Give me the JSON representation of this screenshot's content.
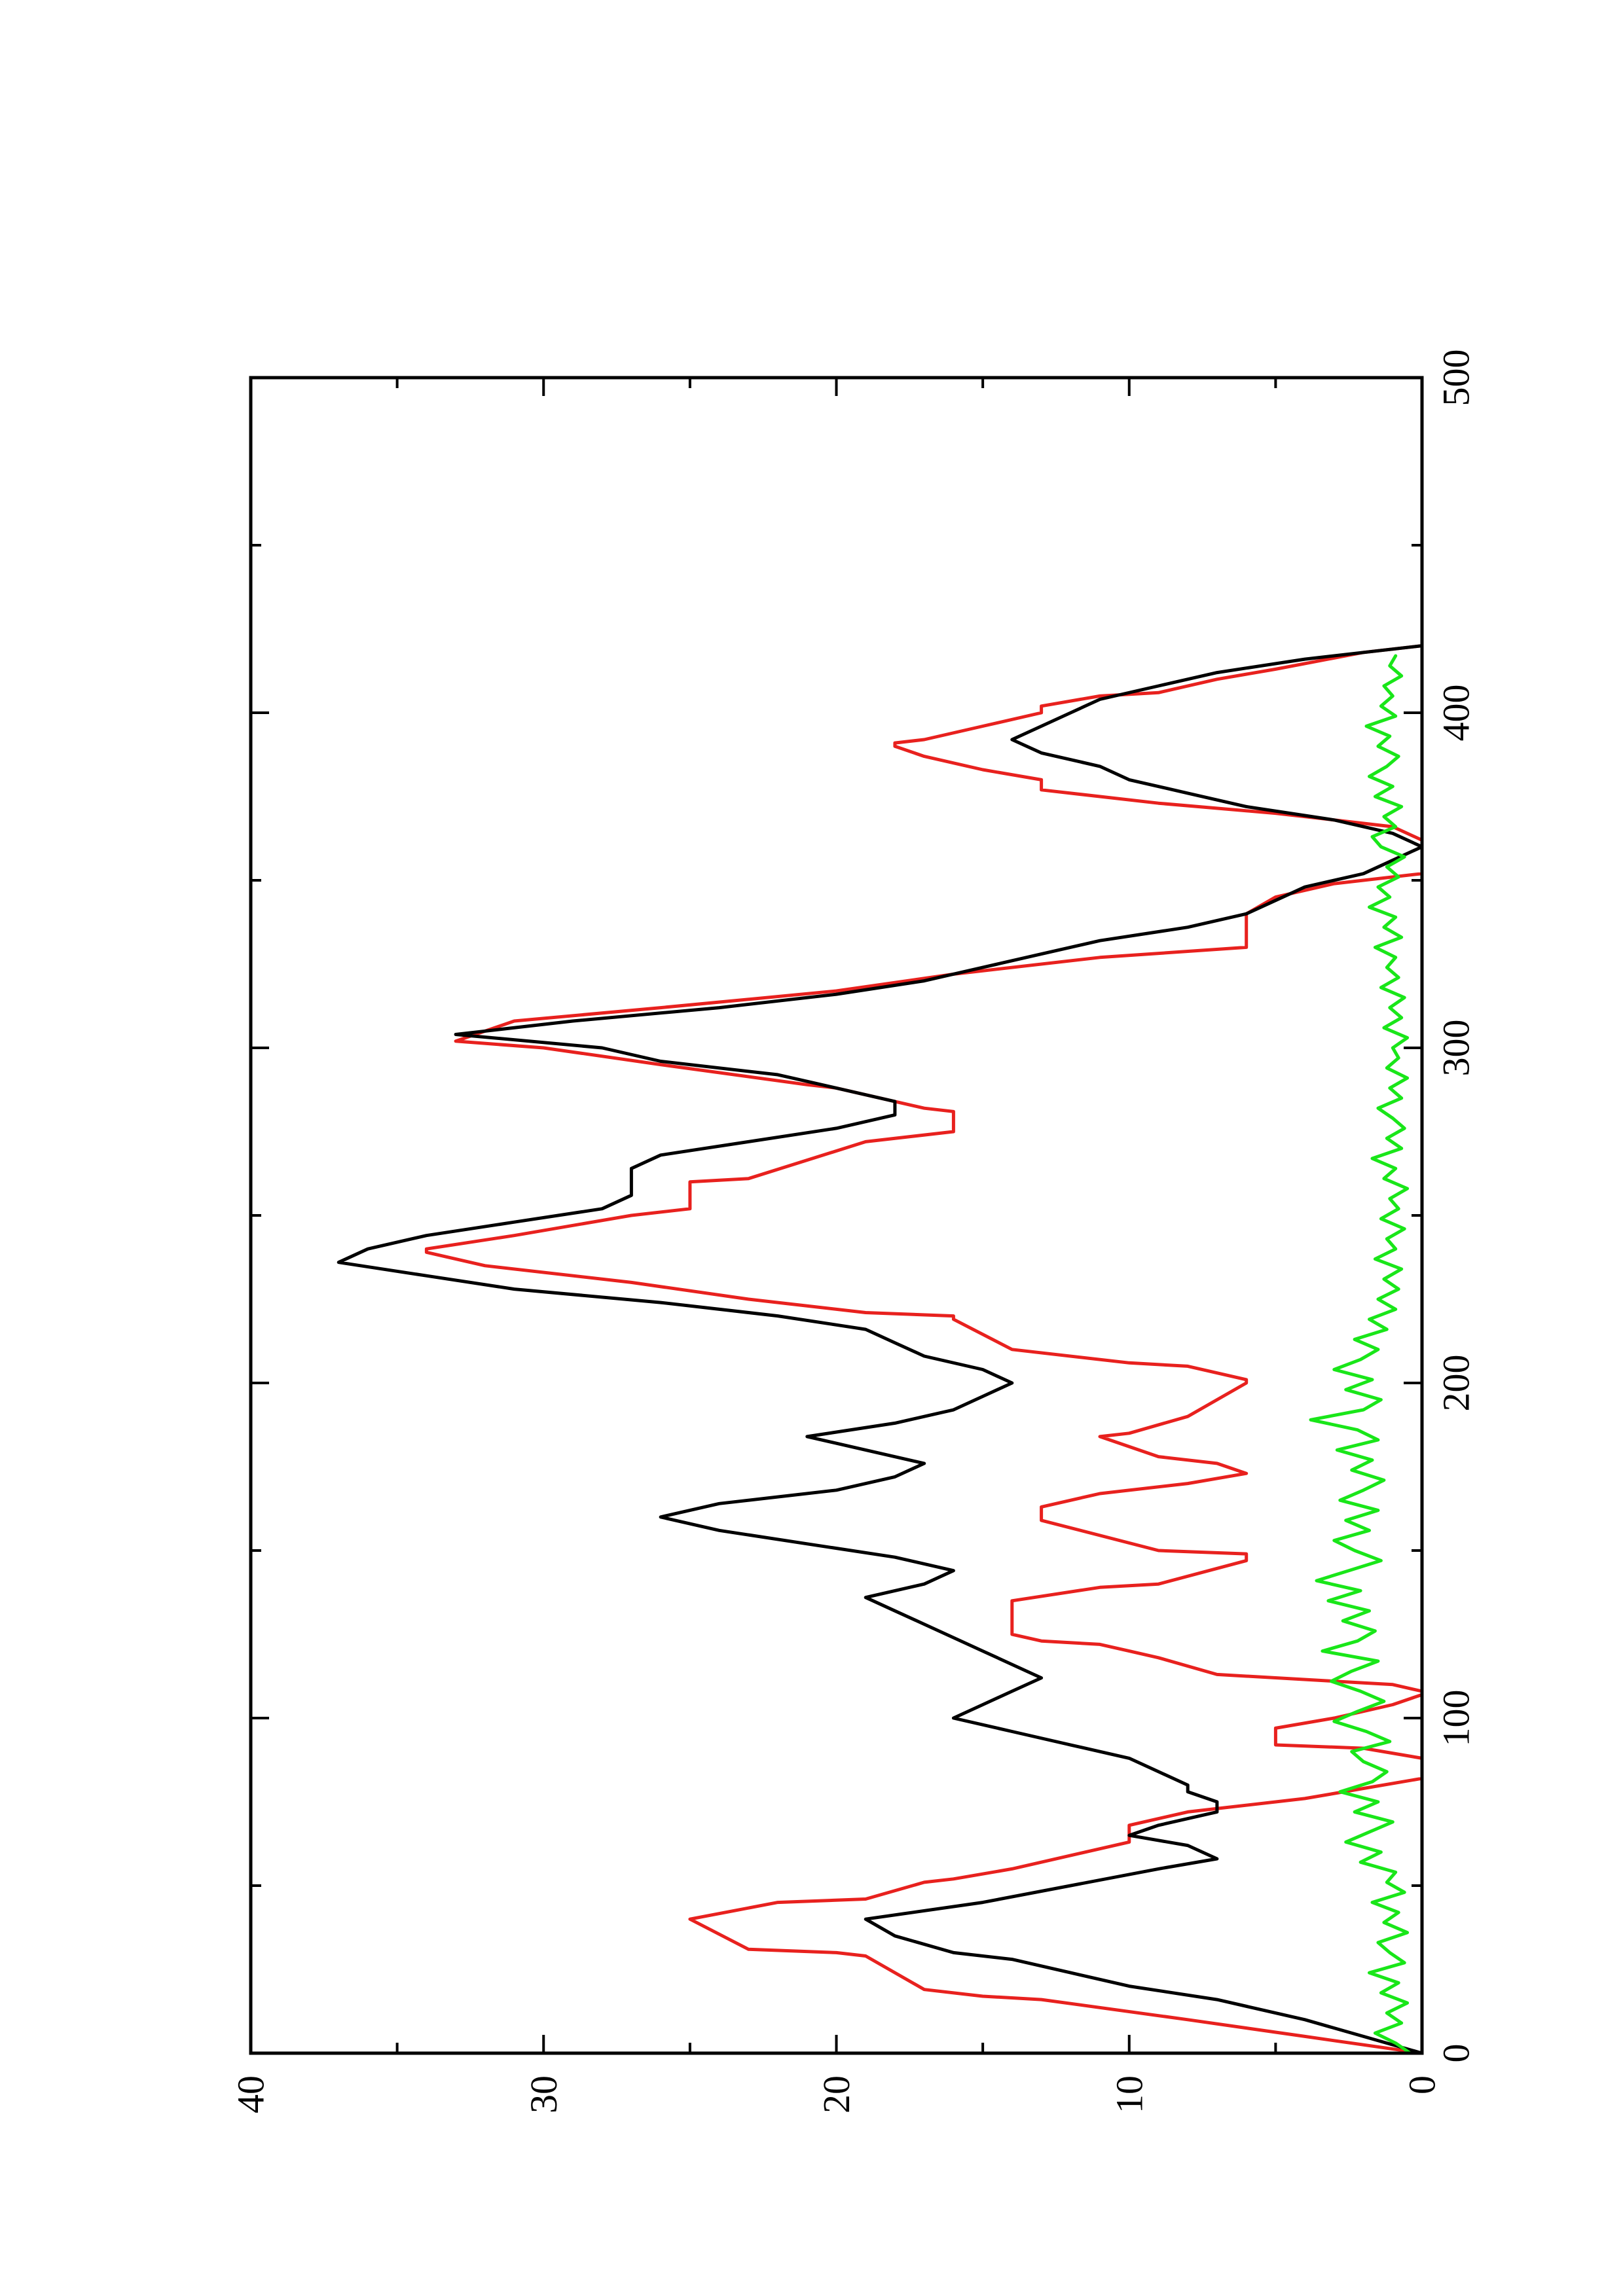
{
  "chart_data": {
    "type": "line",
    "title": "",
    "xlabel": "",
    "ylabel": "",
    "orientation": "rotated 90 degrees counter-clockwise on the page",
    "xlim": [
      0,
      500
    ],
    "ylim": [
      0,
      40
    ],
    "grid": false,
    "legend": "none",
    "x_ticks": [
      "0",
      "100",
      "200",
      "300",
      "400",
      "500"
    ],
    "y_ticks": [
      "0",
      "10",
      "20",
      "30",
      "40"
    ],
    "series": [
      {
        "color": "#e8211e",
        "x": [
          0,
          5,
          10,
          16,
          17,
          19,
          29,
          30,
          31,
          40,
          45,
          46,
          51,
          52,
          55,
          61,
          63,
          68,
          72,
          76,
          79,
          82,
          85,
          88,
          91,
          92,
          97,
          100,
          104,
          107,
          108,
          110,
          113,
          118,
          120,
          122,
          123,
          125,
          135,
          139,
          140,
          147,
          149,
          150,
          159,
          161,
          163,
          167,
          170,
          173,
          176,
          178,
          184,
          185,
          190,
          200,
          201,
          205,
          206,
          210,
          219,
          220,
          221,
          224,
          225,
          230,
          235,
          239,
          240,
          244,
          250,
          252,
          255,
          260,
          261,
          272,
          275,
          281,
          282,
          288,
          289,
          295,
          300,
          302,
          308,
          312,
          317,
          322,
          327,
          330,
          336,
          340,
          345,
          349,
          352,
          356,
          360,
          362,
          366,
          370,
          373,
          377,
          380,
          383,
          387,
          390,
          391,
          392,
          396,
          400,
          402,
          405,
          406,
          410,
          413,
          418,
          420
        ],
        "values": [
          0,
          4,
          8,
          13,
          15,
          17,
          19,
          20,
          23,
          25,
          22,
          19,
          17,
          16,
          14,
          11,
          10,
          10,
          8,
          4,
          2,
          0,
          0,
          0,
          2,
          5,
          5,
          3,
          1,
          0,
          0,
          1,
          7,
          9,
          10,
          11,
          13,
          14,
          14,
          11,
          9,
          6,
          6,
          9,
          13,
          13,
          13,
          11,
          8,
          6,
          7,
          9,
          11,
          10,
          8,
          6,
          6,
          8,
          10,
          14,
          16,
          16,
          19,
          22,
          23,
          27,
          32,
          34,
          34,
          31,
          27,
          25,
          25,
          25,
          23,
          19,
          16,
          16,
          17,
          20,
          21,
          26,
          30,
          33,
          31,
          26,
          20,
          16,
          11,
          6,
          6,
          6,
          5,
          3,
          0,
          0,
          0,
          0,
          1,
          5,
          9,
          13,
          13,
          15,
          17,
          18,
          18,
          17,
          15,
          13,
          13,
          11,
          9,
          7,
          5,
          2,
          0
        ]
      },
      {
        "color": "#000000",
        "x": [
          0,
          5,
          10,
          16,
          20,
          24,
          28,
          30,
          35,
          40,
          45,
          50,
          55,
          58,
          62,
          65,
          68,
          72,
          75,
          78,
          80,
          84,
          88,
          92,
          96,
          100,
          104,
          108,
          112,
          116,
          120,
          124,
          128,
          132,
          136,
          140,
          144,
          148,
          152,
          156,
          160,
          164,
          168,
          172,
          176,
          180,
          184,
          188,
          192,
          196,
          200,
          204,
          208,
          212,
          216,
          220,
          224,
          228,
          232,
          236,
          240,
          244,
          248,
          252,
          256,
          260,
          264,
          268,
          272,
          276,
          280,
          284,
          288,
          292,
          296,
          300,
          304,
          308,
          312,
          316,
          320,
          324,
          328,
          332,
          336,
          340,
          344,
          348,
          352,
          356,
          360,
          364,
          368,
          372,
          376,
          380,
          384,
          388,
          392,
          396,
          400,
          404,
          408,
          412,
          416,
          420
        ],
        "values": [
          0,
          2,
          4,
          7,
          10,
          12,
          14,
          16,
          18,
          19,
          15,
          12,
          9,
          7,
          8,
          10,
          9,
          7,
          7,
          8,
          8,
          9,
          10,
          12,
          14,
          16,
          15,
          14,
          13,
          14,
          15,
          16,
          17,
          18,
          19,
          17,
          16,
          18,
          21,
          24,
          26,
          24,
          20,
          18,
          17,
          19,
          21,
          18,
          16,
          15,
          14,
          15,
          17,
          18,
          19,
          22,
          26,
          31,
          34,
          37,
          36,
          34,
          31,
          28,
          27,
          27,
          27,
          26,
          23,
          20,
          18,
          18,
          20,
          22,
          26,
          28,
          33,
          29,
          24,
          20,
          17,
          15,
          13,
          11,
          8,
          6,
          5,
          4,
          2,
          1,
          0,
          1,
          3,
          6,
          8,
          10,
          11,
          13,
          14,
          13,
          12,
          11,
          9,
          7,
          4,
          0
        ]
      },
      {
        "color": "#19e619",
        "x": [
          0,
          3,
          6,
          9,
          12,
          15,
          18,
          21,
          24,
          27,
          30,
          33,
          36,
          39,
          42,
          45,
          48,
          51,
          54,
          57,
          60,
          63,
          66,
          69,
          72,
          75,
          78,
          81,
          84,
          87,
          90,
          93,
          96,
          99,
          102,
          105,
          108,
          111,
          114,
          117,
          120,
          123,
          126,
          129,
          132,
          135,
          138,
          141,
          144,
          147,
          150,
          153,
          156,
          159,
          162,
          165,
          168,
          171,
          174,
          177,
          180,
          183,
          186,
          189,
          192,
          195,
          198,
          201,
          204,
          207,
          210,
          213,
          216,
          219,
          222,
          225,
          228,
          231,
          234,
          237,
          240,
          243,
          246,
          249,
          252,
          255,
          258,
          261,
          264,
          267,
          270,
          273,
          276,
          279,
          282,
          285,
          288,
          291,
          294,
          297,
          300,
          303,
          306,
          309,
          312,
          315,
          318,
          321,
          324,
          327,
          330,
          333,
          336,
          339,
          342,
          345,
          348,
          351,
          354,
          357,
          360,
          363,
          366,
          369,
          372,
          375,
          378,
          381,
          384,
          387,
          390,
          393,
          396,
          399,
          402,
          405,
          408,
          411,
          414,
          417
        ],
        "values": [
          0.4,
          0.9,
          1.6,
          0.7,
          1.2,
          0.5,
          1.4,
          0.8,
          1.8,
          0.6,
          1.1,
          1.5,
          0.5,
          1.3,
          0.8,
          1.7,
          0.6,
          1.2,
          0.9,
          2.1,
          1.4,
          2.6,
          1.8,
          1.0,
          2.3,
          1.5,
          2.8,
          1.7,
          1.2,
          2.0,
          2.4,
          1.1,
          1.9,
          3.0,
          2.2,
          1.3,
          2.1,
          3.1,
          2.4,
          1.5,
          3.4,
          2.2,
          1.6,
          2.7,
          1.8,
          3.2,
          2.1,
          3.6,
          2.5,
          1.4,
          2.3,
          3.0,
          1.8,
          2.6,
          1.5,
          2.8,
          2.0,
          1.3,
          2.4,
          1.7,
          2.9,
          1.5,
          2.2,
          3.8,
          2.0,
          1.4,
          2.6,
          1.7,
          3.0,
          2.1,
          1.5,
          2.3,
          1.2,
          1.8,
          0.9,
          1.5,
          0.8,
          1.3,
          0.7,
          1.6,
          0.9,
          1.2,
          0.6,
          1.4,
          0.8,
          1.1,
          0.5,
          1.3,
          0.9,
          1.7,
          0.7,
          1.2,
          0.6,
          1.0,
          1.5,
          0.7,
          1.1,
          0.5,
          1.2,
          0.8,
          1.0,
          0.5,
          1.3,
          0.7,
          1.1,
          0.6,
          1.4,
          0.8,
          1.2,
          0.9,
          1.6,
          0.7,
          1.3,
          0.9,
          1.8,
          1.1,
          1.5,
          0.8,
          1.2,
          0.6,
          1.4,
          1.7,
          0.9,
          1.3,
          0.7,
          1.6,
          1.0,
          1.8,
          1.2,
          0.8,
          1.5,
          1.1,
          1.9,
          0.9,
          1.4,
          1.0,
          1.3,
          0.7,
          1.1,
          0.9
        ]
      }
    ]
  }
}
